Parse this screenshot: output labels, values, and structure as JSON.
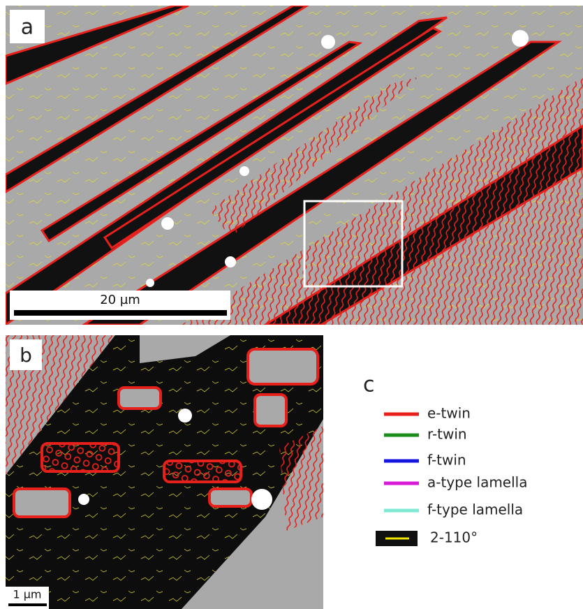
{
  "panels": [
    {
      "label": "a",
      "scale_bar": "20 µm"
    },
    {
      "label": "b",
      "scale_bar": "1 µm"
    }
  ],
  "legend": {
    "label": "c",
    "items": [
      {
        "name": "e-twin",
        "color": "#e8201c"
      },
      {
        "name": "r-twin",
        "color": "#1a8c1a"
      },
      {
        "name": "f-twin",
        "color": "#1515e0"
      },
      {
        "name": "a-type lamella",
        "color": "#d61ad6"
      },
      {
        "name": "f-type lamella",
        "color": "#7fe8d2"
      },
      {
        "name": "2-110°",
        "color": "#f2e600"
      }
    ]
  }
}
